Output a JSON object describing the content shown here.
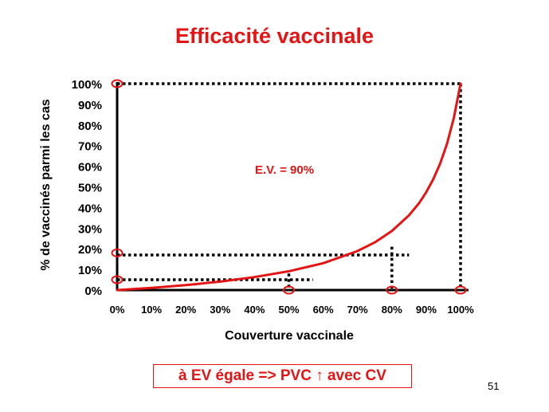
{
  "slide": {
    "title": "Efficacité vaccinale",
    "page_number": "51",
    "conclusion": {
      "before": "à EV égale => PVC ",
      "arrow": "↑",
      "after": " avec CV"
    }
  },
  "colors": {
    "accent": "#e41414",
    "text": "#000000"
  },
  "chart_data": {
    "type": "line",
    "xlabel": "Couverture vaccinale",
    "ylabel": "% de vaccinés parmi les cas",
    "xlim": [
      0,
      100
    ],
    "ylim": [
      0,
      100
    ],
    "x_ticks": [
      "0%",
      "10%",
      "20%",
      "30%",
      "40%",
      "50%",
      "60%",
      "70%",
      "80%",
      "90%",
      "100%"
    ],
    "y_ticks": [
      "0%",
      "10%",
      "20%",
      "30%",
      "40%",
      "50%",
      "60%",
      "70%",
      "80%",
      "90%",
      "100%"
    ],
    "annotation": "E.V. = 90%",
    "series": [
      {
        "x": [
          0,
          10,
          20,
          30,
          40,
          50,
          60,
          70,
          75,
          80,
          85,
          88,
          90,
          92,
          94,
          96,
          98,
          100
        ],
        "y": [
          0,
          1.1,
          2.4,
          4.1,
          6.3,
          9.1,
          13,
          18.9,
          23.1,
          28.6,
          36.2,
          42.3,
          47.4,
          53.5,
          61,
          70.6,
          83.1,
          100
        ],
        "color": "#e41414"
      }
    ],
    "highlighted_points": [
      {
        "x": 0,
        "y": 100
      },
      {
        "x": 0,
        "y": 18
      },
      {
        "x": 0,
        "y": 5
      },
      {
        "x": 50,
        "y": 0
      },
      {
        "x": 80,
        "y": 0
      },
      {
        "x": 100,
        "y": 0
      }
    ],
    "reference_lines": [
      {
        "from": [
          0,
          100
        ],
        "to": [
          100,
          100
        ]
      },
      {
        "from": [
          100,
          100
        ],
        "to": [
          100,
          0
        ]
      },
      {
        "from": [
          0,
          17
        ],
        "to": [
          85,
          17
        ]
      },
      {
        "from": [
          80,
          21
        ],
        "to": [
          80,
          0
        ]
      },
      {
        "from": [
          0,
          5
        ],
        "to": [
          57,
          5
        ]
      },
      {
        "from": [
          50,
          8
        ],
        "to": [
          50,
          0
        ]
      }
    ]
  }
}
